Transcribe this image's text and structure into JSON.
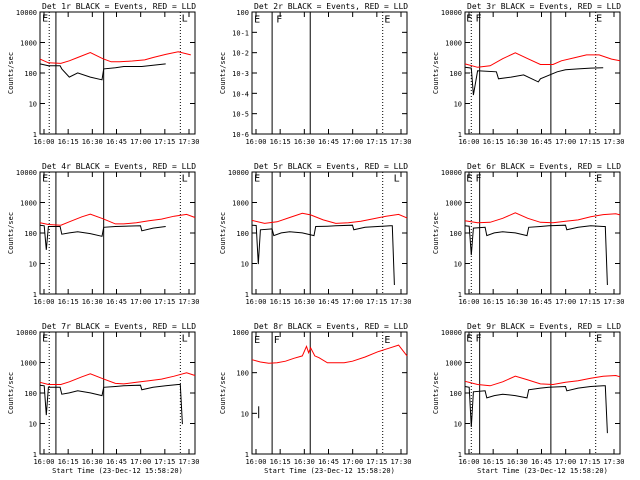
{
  "chart_data": [
    {
      "type": "line",
      "title": "Det 1r BLACK = Events, RED = LLD",
      "xlabel": "",
      "ylabel": "Counts/sec",
      "log_y": true,
      "ylim": [
        1,
        12000
      ],
      "yticks": [
        "1",
        "10",
        "100",
        "1000",
        "10000"
      ],
      "xlim": [
        0,
        37
      ],
      "xticks": [
        "16:00",
        "16:15",
        "16:30",
        "16:45",
        "17:00",
        "17:15",
        "17:30"
      ],
      "series": [
        {
          "color": "#ff0000",
          "x": [
            0,
            2,
            5,
            7,
            9,
            12,
            15,
            17,
            19,
            22,
            25,
            27,
            30,
            33,
            36
          ],
          "y": [
            320,
            240,
            230,
            280,
            360,
            530,
            330,
            260,
            260,
            275,
            300,
            360,
            460,
            560,
            440
          ]
        },
        {
          "color": "#000000",
          "x": [
            0,
            2,
            4.8,
            5.2,
            7,
            9,
            12,
            14.8,
            15.2,
            18,
            20,
            24,
            24.3,
            27,
            30
          ],
          "y": [
            220,
            190,
            190,
            150,
            80,
            110,
            80,
            65,
            150,
            165,
            180,
            180,
            180,
            200,
            220
          ]
        }
      ],
      "vlines": [
        {
          "x": 2.2,
          "style": "dotted"
        },
        {
          "x": 3.8,
          "style": "solid"
        },
        {
          "x": 15.2,
          "style": "solid"
        },
        {
          "x": 33.5,
          "style": "dotted"
        }
      ],
      "markers": [
        {
          "text": "E",
          "x": 0.5,
          "y": 8000
        },
        {
          "text": "L",
          "x": 33.8,
          "y": 8000
        }
      ]
    },
    {
      "type": "line",
      "title": "Det 2r BLACK = Events, RED = LLD",
      "xlabel": "",
      "ylabel": "Counts/sec",
      "log_y": true,
      "ylim": [
        1e-06,
        2
      ],
      "yticks": [
        "10-6",
        "10-5",
        "10-4",
        "10-3",
        "10-2",
        "10-1",
        "100"
      ],
      "xlim": [
        0,
        37
      ],
      "xticks": [
        "16:00",
        "16:15",
        "16:30",
        "16:45",
        "17:00",
        "17:15",
        "17:30"
      ],
      "series": [],
      "vlines": [
        {
          "x": 4.8,
          "style": "solid"
        },
        {
          "x": 13.9,
          "style": "solid"
        },
        {
          "x": 31.2,
          "style": "dotted"
        }
      ],
      "markers": [
        {
          "text": "E",
          "x": 0.5,
          "y": 0.9
        },
        {
          "text": "F",
          "x": 5.8,
          "y": 0.9
        },
        {
          "text": "E",
          "x": 31.6,
          "y": 0.9
        }
      ]
    },
    {
      "type": "line",
      "title": "Det 3r BLACK = Events, RED = LLD",
      "xlabel": "",
      "ylabel": "Counts/sec",
      "log_y": true,
      "ylim": [
        1,
        12000
      ],
      "yticks": [
        "1",
        "10",
        "100",
        "1000",
        "10000"
      ],
      "xlim": [
        0,
        37
      ],
      "xticks": [
        "16:00",
        "16:15",
        "16:30",
        "16:45",
        "17:00",
        "17:15",
        "17:30"
      ],
      "series": [
        {
          "color": "#ff0000",
          "x": [
            0,
            3,
            6,
            9,
            12,
            15,
            18,
            21,
            23,
            26,
            29,
            32,
            35,
            37
          ],
          "y": [
            220,
            170,
            190,
            330,
            520,
            330,
            210,
            210,
            280,
            350,
            440,
            440,
            320,
            280
          ]
        },
        {
          "color": "#000000",
          "x": [
            0,
            1.5,
            2,
            3,
            7.5,
            8,
            11,
            14,
            17.5,
            18,
            22,
            24,
            27,
            30,
            33
          ],
          "y": [
            170,
            160,
            20,
            130,
            120,
            70,
            80,
            95,
            55,
            70,
            120,
            140,
            150,
            160,
            165
          ]
        }
      ],
      "vlines": [
        {
          "x": 1.5,
          "style": "dotted"
        },
        {
          "x": 3.5,
          "style": "solid"
        },
        {
          "x": 20.5,
          "style": "solid"
        },
        {
          "x": 31.2,
          "style": "dotted"
        }
      ],
      "markers": [
        {
          "text": "E",
          "x": 0.3,
          "y": 8000
        },
        {
          "text": "F",
          "x": 2.5,
          "y": 8000
        },
        {
          "text": "E",
          "x": 31.3,
          "y": 8000
        }
      ]
    },
    {
      "type": "line",
      "title": "Det 4r BLACK = Events, RED = LLD",
      "xlabel": "",
      "ylabel": "Counts/sec",
      "log_y": true,
      "ylim": [
        1,
        12000
      ],
      "yticks": [
        "1",
        "10",
        "100",
        "1000",
        "10000"
      ],
      "xlim": [
        0,
        37
      ],
      "xticks": [
        "16:00",
        "16:15",
        "16:30",
        "16:45",
        "17:00",
        "17:15",
        "17:30"
      ],
      "series": [
        {
          "color": "#ff0000",
          "x": [
            0,
            2,
            5,
            7,
            10,
            12,
            15,
            18,
            20,
            23,
            26,
            29,
            32,
            35,
            37
          ],
          "y": [
            240,
            210,
            200,
            260,
            380,
            470,
            330,
            220,
            220,
            240,
            280,
            320,
            400,
            460,
            360
          ]
        },
        {
          "color": "#000000",
          "x": [
            0,
            1,
            1.5,
            2,
            4.8,
            5.2,
            7,
            9,
            12,
            14.8,
            15.2,
            18,
            20,
            24,
            24.3,
            27,
            30
          ],
          "y": [
            200,
            190,
            30,
            180,
            180,
            100,
            110,
            120,
            105,
            85,
            170,
            180,
            185,
            190,
            130,
            160,
            180
          ]
        }
      ],
      "vlines": [
        {
          "x": 2.2,
          "style": "dotted"
        },
        {
          "x": 3.8,
          "style": "solid"
        },
        {
          "x": 15.2,
          "style": "solid"
        },
        {
          "x": 33.5,
          "style": "dotted"
        }
      ],
      "markers": [
        {
          "text": "E",
          "x": 0.5,
          "y": 8000
        },
        {
          "text": "L",
          "x": 33.8,
          "y": 8000
        }
      ]
    },
    {
      "type": "line",
      "title": "Det 5r BLACK = Events, RED = LLD",
      "xlabel": "",
      "ylabel": "Counts/sec",
      "log_y": true,
      "ylim": [
        1,
        12000
      ],
      "yticks": [
        "1",
        "10",
        "100",
        "1000",
        "10000"
      ],
      "xlim": [
        0,
        37
      ],
      "xticks": [
        "16:00",
        "16:15",
        "16:30",
        "16:45",
        "17:00",
        "17:15",
        "17:30"
      ],
      "series": [
        {
          "color": "#ff0000",
          "x": [
            0,
            3,
            6,
            9,
            12,
            14,
            17,
            20,
            23,
            26,
            29,
            32,
            35,
            37
          ],
          "y": [
            290,
            230,
            260,
            360,
            500,
            440,
            300,
            230,
            240,
            270,
            330,
            400,
            460,
            350
          ]
        },
        {
          "color": "#000000",
          "x": [
            0,
            1,
            1.5,
            2,
            4.8,
            5.2,
            7,
            9,
            12,
            14.8,
            15.2,
            18,
            20,
            24,
            24.3,
            27,
            30,
            33,
            33.5,
            34
          ],
          "y": [
            200,
            195,
            10,
            140,
            150,
            90,
            110,
            120,
            110,
            90,
            180,
            185,
            190,
            200,
            140,
            170,
            180,
            190,
            190,
            2
          ]
        }
      ],
      "vlines": [
        {
          "x": 4.8,
          "style": "solid"
        },
        {
          "x": 13.9,
          "style": "solid"
        },
        {
          "x": 31.2,
          "style": "dotted"
        }
      ],
      "markers": [
        {
          "text": "E",
          "x": 0.5,
          "y": 8000
        },
        {
          "text": "L",
          "x": 33.8,
          "y": 8000
        }
      ]
    },
    {
      "type": "line",
      "title": "Det 6r BLACK = Events, RED = LLD",
      "xlabel": "",
      "ylabel": "Counts/sec",
      "log_y": true,
      "ylim": [
        1,
        12000
      ],
      "yticks": [
        "1",
        "10",
        "100",
        "1000",
        "10000"
      ],
      "xlim": [
        0,
        37
      ],
      "xticks": [
        "16:00",
        "16:15",
        "16:30",
        "16:45",
        "17:00",
        "17:15",
        "17:30"
      ],
      "series": [
        {
          "color": "#ff0000",
          "x": [
            0,
            3,
            6,
            9,
            12,
            15,
            18,
            21,
            24,
            27,
            30,
            33,
            36,
            37
          ],
          "y": [
            280,
            240,
            250,
            340,
            520,
            340,
            250,
            240,
            270,
            300,
            380,
            450,
            480,
            440
          ]
        },
        {
          "color": "#000000",
          "x": [
            0,
            1,
            1.5,
            2,
            4.8,
            5.2,
            7,
            9,
            12,
            14.8,
            15.2,
            18,
            20,
            24,
            24.3,
            27,
            30,
            33,
            33.5,
            34
          ],
          "y": [
            190,
            185,
            20,
            160,
            170,
            90,
            110,
            120,
            110,
            90,
            170,
            180,
            190,
            200,
            140,
            170,
            190,
            180,
            180,
            2
          ]
        }
      ],
      "vlines": [
        {
          "x": 1.5,
          "style": "dotted"
        },
        {
          "x": 3.5,
          "style": "solid"
        },
        {
          "x": 20.5,
          "style": "solid"
        },
        {
          "x": 31.2,
          "style": "dotted"
        }
      ],
      "markers": [
        {
          "text": "E",
          "x": 0.3,
          "y": 8000
        },
        {
          "text": "F",
          "x": 2.5,
          "y": 8000
        },
        {
          "text": "E",
          "x": 31.3,
          "y": 8000
        }
      ]
    },
    {
      "type": "line",
      "title": "Det 7r BLACK = Events, RED = LLD",
      "xlabel": "Start Time (23-Dec-12 15:58:20)",
      "ylabel": "Counts/sec",
      "log_y": true,
      "ylim": [
        1,
        12000
      ],
      "yticks": [
        "1",
        "10",
        "100",
        "1000",
        "10000"
      ],
      "xlim": [
        0,
        37
      ],
      "xticks": [
        "16:00",
        "16:15",
        "16:30",
        "16:45",
        "17:00",
        "17:15",
        "17:30"
      ],
      "series": [
        {
          "color": "#ff0000",
          "x": [
            0,
            2,
            5,
            7,
            10,
            12,
            15,
            18,
            20,
            23,
            26,
            29,
            32,
            35,
            37
          ],
          "y": [
            250,
            210,
            210,
            260,
            380,
            480,
            330,
            230,
            220,
            250,
            280,
            320,
            400,
            520,
            420
          ]
        },
        {
          "color": "#000000",
          "x": [
            0,
            1,
            1.5,
            2,
            4.8,
            5.2,
            7,
            9,
            12,
            14.8,
            15.2,
            18,
            20,
            24,
            24.3,
            27,
            30,
            33,
            33.5,
            34
          ],
          "y": [
            200,
            190,
            20,
            170,
            170,
            100,
            110,
            130,
            110,
            90,
            170,
            180,
            190,
            200,
            140,
            170,
            190,
            210,
            210,
            10
          ]
        }
      ],
      "vlines": [
        {
          "x": 2.2,
          "style": "dotted"
        },
        {
          "x": 3.8,
          "style": "solid"
        },
        {
          "x": 15.2,
          "style": "solid"
        },
        {
          "x": 33.5,
          "style": "dotted"
        }
      ],
      "markers": [
        {
          "text": "E",
          "x": 0.5,
          "y": 8000
        },
        {
          "text": "L",
          "x": 33.8,
          "y": 8000
        }
      ]
    },
    {
      "type": "line",
      "title": "Det 8r BLACK = Events, RED = LLD",
      "xlabel": "Start Time (23-Dec-12 15:58:20)",
      "ylabel": "Counts/sec",
      "log_y": true,
      "ylim": [
        1,
        1200
      ],
      "yticks": [
        "1",
        "10",
        "100",
        "1000"
      ],
      "xlim": [
        0,
        37
      ],
      "xticks": [
        "16:00",
        "16:15",
        "16:30",
        "16:45",
        "17:00",
        "17:15",
        "17:30"
      ],
      "series": [
        {
          "color": "#ff0000",
          "x": [
            0,
            2,
            4,
            6,
            8,
            10,
            12,
            13,
            13.5,
            14,
            15,
            16,
            18,
            20,
            22,
            24,
            27,
            30,
            33,
            35,
            37
          ],
          "y": [
            240,
            210,
            195,
            200,
            220,
            260,
            300,
            520,
            360,
            480,
            300,
            270,
            200,
            200,
            200,
            220,
            280,
            380,
            480,
            560,
            300
          ]
        },
        {
          "color": "#000000",
          "x": [
            1.6,
            1.6
          ],
          "y": [
            8,
            16
          ]
        }
      ],
      "vlines": [
        {
          "x": 4.8,
          "style": "solid"
        },
        {
          "x": 13.9,
          "style": "solid"
        },
        {
          "x": 31.2,
          "style": "dotted"
        }
      ],
      "markers": [
        {
          "text": "E",
          "x": 0.5,
          "y": 800
        },
        {
          "text": "F",
          "x": 5.2,
          "y": 800
        },
        {
          "text": "E",
          "x": 31.6,
          "y": 800
        }
      ]
    },
    {
      "type": "line",
      "title": "Det 9r BLACK = Events, RED = LLD",
      "xlabel": "Start Time (23-Dec-12 15:58:20)",
      "ylabel": "Counts/sec",
      "log_y": true,
      "ylim": [
        1,
        12000
      ],
      "yticks": [
        "1",
        "10",
        "100",
        "1000",
        "10000"
      ],
      "xlim": [
        0,
        37
      ],
      "xticks": [
        "16:00",
        "16:15",
        "16:30",
        "16:45",
        "17:00",
        "17:15",
        "17:30"
      ],
      "series": [
        {
          "color": "#ff0000",
          "x": [
            0,
            3,
            6,
            9,
            12,
            15,
            18,
            21,
            24,
            27,
            30,
            33,
            36,
            37
          ],
          "y": [
            270,
            210,
            190,
            260,
            400,
            300,
            220,
            210,
            250,
            280,
            340,
            400,
            420,
            380
          ]
        },
        {
          "color": "#000000",
          "x": [
            0,
            1,
            1.5,
            2,
            4.8,
            5.2,
            7,
            9,
            12,
            14.8,
            15.2,
            18,
            20,
            24,
            24.3,
            27,
            30,
            33,
            33.5,
            34
          ],
          "y": [
            180,
            170,
            8,
            120,
            130,
            75,
            90,
            100,
            90,
            75,
            140,
            160,
            170,
            180,
            130,
            160,
            180,
            190,
            190,
            5
          ]
        }
      ],
      "vlines": [
        {
          "x": 1.5,
          "style": "dotted"
        },
        {
          "x": 3.5,
          "style": "solid"
        },
        {
          "x": 20.5,
          "style": "solid"
        },
        {
          "x": 31.2,
          "style": "dotted"
        }
      ],
      "markers": [
        {
          "text": "E",
          "x": 0.3,
          "y": 8000
        },
        {
          "text": "F",
          "x": 2.5,
          "y": 8000
        },
        {
          "text": "E",
          "x": 31.3,
          "y": 8000
        }
      ]
    }
  ]
}
